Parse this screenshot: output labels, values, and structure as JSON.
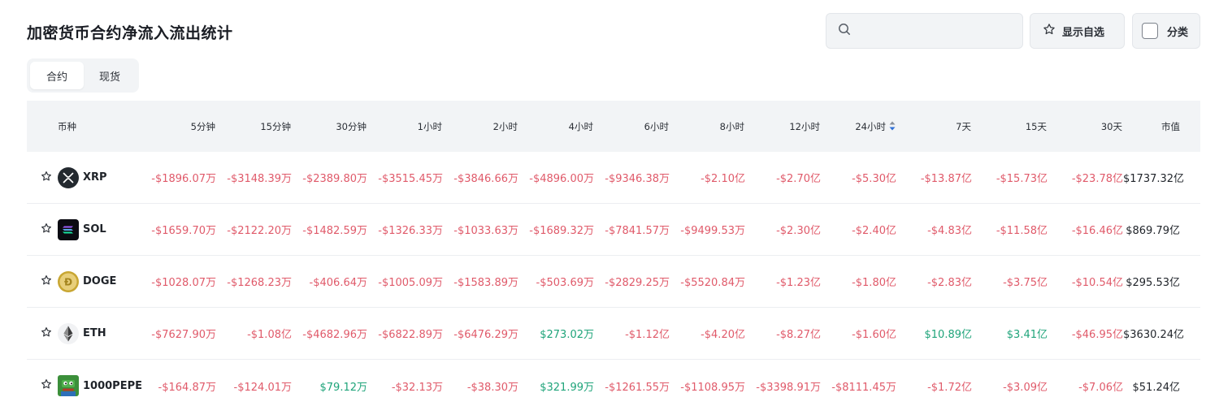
{
  "title": "加密货币合约净流入流出统计",
  "search": {
    "placeholder": ""
  },
  "buttons": {
    "favorites": "显示自选",
    "category": "分类"
  },
  "tabs": [
    {
      "label": "合约",
      "active": true
    },
    {
      "label": "现货",
      "active": false
    }
  ],
  "columns": [
    "币种",
    "5分钟",
    "15分钟",
    "30分钟",
    "1小时",
    "2小时",
    "4小时",
    "6小时",
    "8小时",
    "12小时",
    "24小时",
    "7天",
    "15天",
    "30天",
    "市值"
  ],
  "sorted_column": "24小时",
  "colors": {
    "negative": "#e05a6a",
    "positive": "#1fa47a",
    "sort_active": "#2f6fd6"
  },
  "rows": [
    {
      "symbol": "XRP",
      "logo_icon": "xrp-logo-icon",
      "values": [
        "-$1896.07万",
        "-$3148.39万",
        "-$2389.80万",
        "-$3515.45万",
        "-$3846.66万",
        "-$4896.00万",
        "-$9346.38万",
        "-$2.10亿",
        "-$2.70亿",
        "-$5.30亿",
        "-$13.87亿",
        "-$15.73亿",
        "-$23.78亿"
      ],
      "market_cap": "$1737.32亿"
    },
    {
      "symbol": "SOL",
      "logo_icon": "sol-logo-icon",
      "values": [
        "-$1659.70万",
        "-$2122.20万",
        "-$1482.59万",
        "-$1326.33万",
        "-$1033.63万",
        "-$1689.32万",
        "-$7841.57万",
        "-$9499.53万",
        "-$2.30亿",
        "-$2.40亿",
        "-$4.83亿",
        "-$11.58亿",
        "-$16.46亿"
      ],
      "market_cap": "$869.79亿"
    },
    {
      "symbol": "DOGE",
      "logo_icon": "doge-logo-icon",
      "values": [
        "-$1028.07万",
        "-$1268.23万",
        "-$406.64万",
        "-$1005.09万",
        "-$1583.89万",
        "-$503.69万",
        "-$2829.25万",
        "-$5520.84万",
        "-$1.23亿",
        "-$1.80亿",
        "-$2.83亿",
        "-$3.75亿",
        "-$10.54亿"
      ],
      "market_cap": "$295.53亿"
    },
    {
      "symbol": "ETH",
      "logo_icon": "eth-logo-icon",
      "values": [
        "-$7627.90万",
        "-$1.08亿",
        "-$4682.96万",
        "-$6822.89万",
        "-$6476.29万",
        "$273.02万",
        "-$1.12亿",
        "-$4.20亿",
        "-$8.27亿",
        "-$1.60亿",
        "$10.89亿",
        "$3.41亿",
        "-$46.95亿"
      ],
      "market_cap": "$3630.24亿"
    },
    {
      "symbol": "1000PEPE",
      "logo_icon": "pepe-logo-icon",
      "values": [
        "-$164.87万",
        "-$124.01万",
        "$79.12万",
        "-$32.13万",
        "-$38.30万",
        "$321.99万",
        "-$1261.55万",
        "-$1108.95万",
        "-$3398.91万",
        "-$8111.45万",
        "-$1.72亿",
        "-$3.09亿",
        "-$7.06亿"
      ],
      "market_cap": "$51.24亿"
    }
  ]
}
